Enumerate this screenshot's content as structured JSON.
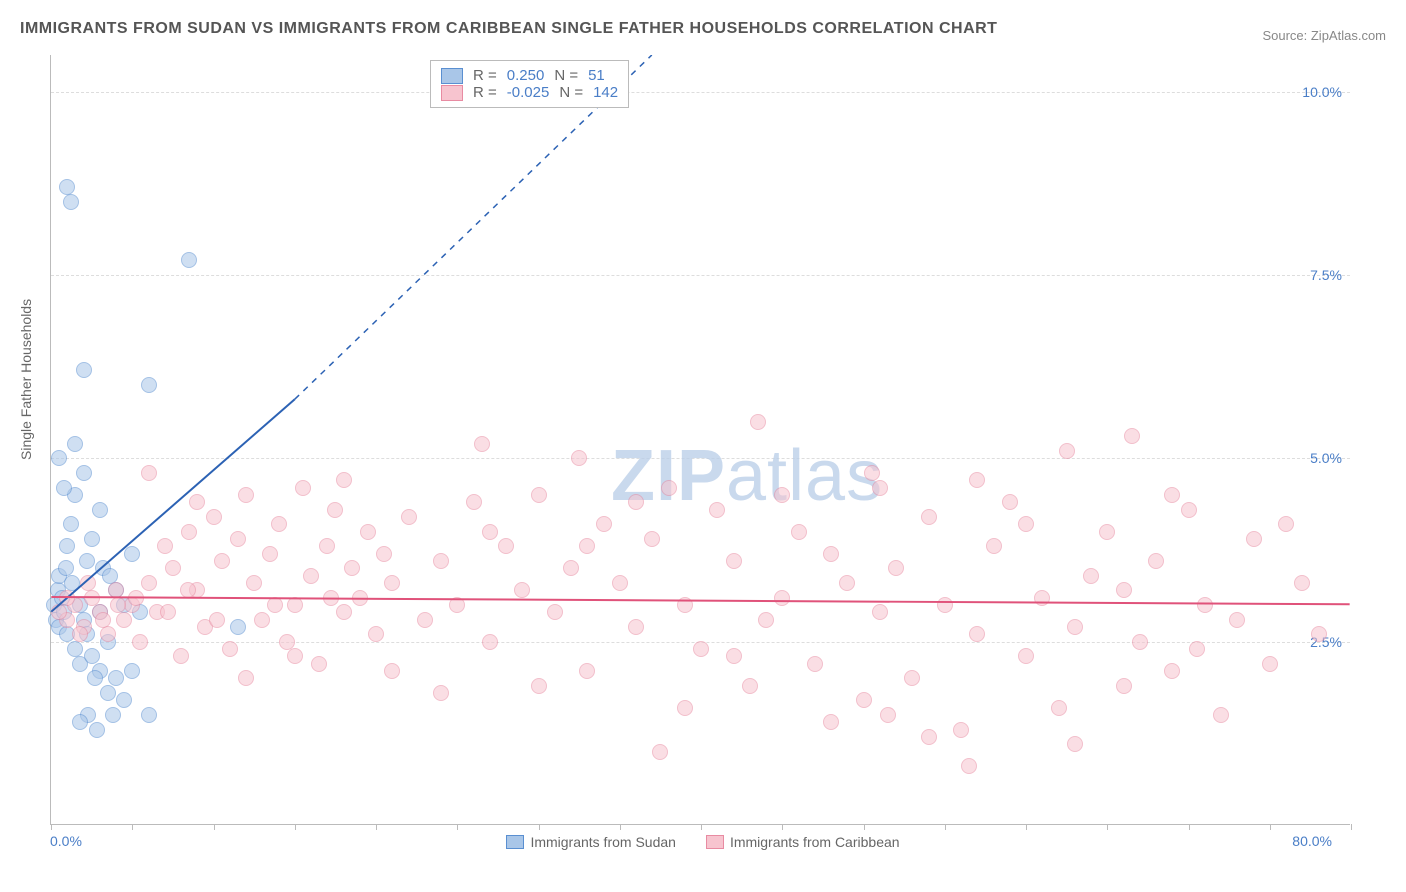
{
  "title": "IMMIGRANTS FROM SUDAN VS IMMIGRANTS FROM CARIBBEAN SINGLE FATHER HOUSEHOLDS CORRELATION CHART",
  "source": "Source: ZipAtlas.com",
  "ylabel": "Single Father Households",
  "watermark_a": "ZIP",
  "watermark_b": "atlas",
  "chart": {
    "type": "scatter",
    "background_color": "#ffffff",
    "grid_color": "#dddddd",
    "axis_color": "#bbbbbb",
    "label_color": "#666666",
    "title_color": "#555555",
    "tick_color": "#4a7ec7",
    "title_fontsize": 16,
    "label_fontsize": 14,
    "tick_fontsize": 14,
    "xlim": [
      0,
      80
    ],
    "ylim": [
      0,
      10.5
    ],
    "xticks_minor": [
      0,
      5,
      10,
      15,
      20,
      25,
      30,
      35,
      40,
      45,
      50,
      55,
      60,
      65,
      70,
      75,
      80
    ],
    "xtick_labels": {
      "min": "0.0%",
      "max": "80.0%"
    },
    "yticks": [
      2.5,
      5.0,
      7.5,
      10.0
    ],
    "ytick_labels": [
      "2.5%",
      "5.0%",
      "7.5%",
      "10.0%"
    ],
    "marker_size": 16,
    "marker_opacity": 0.55,
    "series": [
      {
        "name": "Immigrants from Sudan",
        "fill_color": "#a9c6e8",
        "stroke_color": "#5a8fd1",
        "line_color": "#2c62b4",
        "line_width": 2,
        "reg_solid": {
          "x1": 0,
          "y1": 2.9,
          "x2": 15,
          "y2": 5.8
        },
        "reg_dash": {
          "x1": 15,
          "y1": 5.8,
          "x2": 37,
          "y2": 10.5
        },
        "points": [
          [
            0.2,
            3.0
          ],
          [
            0.3,
            2.8
          ],
          [
            0.4,
            3.2
          ],
          [
            0.5,
            2.7
          ],
          [
            0.5,
            3.4
          ],
          [
            0.7,
            3.1
          ],
          [
            0.8,
            2.9
          ],
          [
            0.9,
            3.5
          ],
          [
            1.0,
            2.6
          ],
          [
            1.0,
            3.8
          ],
          [
            1.2,
            4.1
          ],
          [
            1.3,
            3.3
          ],
          [
            1.5,
            2.4
          ],
          [
            1.5,
            4.5
          ],
          [
            1.8,
            2.2
          ],
          [
            1.8,
            3.0
          ],
          [
            2.0,
            4.8
          ],
          [
            2.0,
            2.8
          ],
          [
            2.2,
            3.6
          ],
          [
            2.3,
            1.5
          ],
          [
            2.5,
            2.3
          ],
          [
            2.5,
            3.9
          ],
          [
            2.8,
            1.3
          ],
          [
            3.0,
            2.1
          ],
          [
            3.0,
            4.3
          ],
          [
            3.2,
            3.5
          ],
          [
            3.5,
            2.5
          ],
          [
            3.5,
            1.8
          ],
          [
            3.8,
            1.5
          ],
          [
            4.0,
            2.0
          ],
          [
            4.0,
            3.2
          ],
          [
            4.5,
            1.7
          ],
          [
            1.0,
            8.7
          ],
          [
            1.2,
            8.5
          ],
          [
            2.0,
            6.2
          ],
          [
            6.0,
            6.0
          ],
          [
            8.5,
            7.7
          ],
          [
            5.0,
            3.7
          ],
          [
            5.0,
            2.1
          ],
          [
            5.5,
            2.9
          ],
          [
            6.0,
            1.5
          ],
          [
            0.5,
            5.0
          ],
          [
            0.8,
            4.6
          ],
          [
            1.5,
            5.2
          ],
          [
            4.5,
            3.0
          ],
          [
            3.0,
            2.9
          ],
          [
            2.7,
            2.0
          ],
          [
            1.8,
            1.4
          ],
          [
            2.2,
            2.6
          ],
          [
            11.5,
            2.7
          ],
          [
            3.6,
            3.4
          ]
        ]
      },
      {
        "name": "Immigrants from Caribbean",
        "fill_color": "#f7c4cf",
        "stroke_color": "#e88ba2",
        "line_color": "#e0527a",
        "line_width": 2,
        "reg_solid": {
          "x1": 0,
          "y1": 3.1,
          "x2": 80,
          "y2": 3.0
        },
        "reg_dash": null,
        "points": [
          [
            1.0,
            2.8
          ],
          [
            1.5,
            3.0
          ],
          [
            2.0,
            2.7
          ],
          [
            2.5,
            3.1
          ],
          [
            3.0,
            2.9
          ],
          [
            3.5,
            2.6
          ],
          [
            4.0,
            3.2
          ],
          [
            4.5,
            2.8
          ],
          [
            5.0,
            3.0
          ],
          [
            5.5,
            2.5
          ],
          [
            6.0,
            3.3
          ],
          [
            6.5,
            2.9
          ],
          [
            7.0,
            3.8
          ],
          [
            7.5,
            3.5
          ],
          [
            8.0,
            2.3
          ],
          [
            8.5,
            4.0
          ],
          [
            9.0,
            3.2
          ],
          [
            9.5,
            2.7
          ],
          [
            10.0,
            4.2
          ],
          [
            10.5,
            3.6
          ],
          [
            11.0,
            2.4
          ],
          [
            11.5,
            3.9
          ],
          [
            12.0,
            4.5
          ],
          [
            12.5,
            3.3
          ],
          [
            13.0,
            2.8
          ],
          [
            13.5,
            3.7
          ],
          [
            14.0,
            4.1
          ],
          [
            14.5,
            2.5
          ],
          [
            15.0,
            3.0
          ],
          [
            15.5,
            4.6
          ],
          [
            16.0,
            3.4
          ],
          [
            16.5,
            2.2
          ],
          [
            17.0,
            3.8
          ],
          [
            17.5,
            4.3
          ],
          [
            18.0,
            2.9
          ],
          [
            18.5,
            3.5
          ],
          [
            19.0,
            3.1
          ],
          [
            19.5,
            4.0
          ],
          [
            20.0,
            2.6
          ],
          [
            20.5,
            3.7
          ],
          [
            21.0,
            3.3
          ],
          [
            22.0,
            4.2
          ],
          [
            23.0,
            2.8
          ],
          [
            24.0,
            3.6
          ],
          [
            25.0,
            3.0
          ],
          [
            26.0,
            4.4
          ],
          [
            26.5,
            5.2
          ],
          [
            27.0,
            2.5
          ],
          [
            28.0,
            3.8
          ],
          [
            29.0,
            3.2
          ],
          [
            30.0,
            4.5
          ],
          [
            31.0,
            2.9
          ],
          [
            32.0,
            3.5
          ],
          [
            32.5,
            5.0
          ],
          [
            33.0,
            2.1
          ],
          [
            34.0,
            4.1
          ],
          [
            35.0,
            3.3
          ],
          [
            36.0,
            2.7
          ],
          [
            37.0,
            3.9
          ],
          [
            37.5,
            1.0
          ],
          [
            38.0,
            4.6
          ],
          [
            39.0,
            3.0
          ],
          [
            40.0,
            2.4
          ],
          [
            41.0,
            4.3
          ],
          [
            42.0,
            3.6
          ],
          [
            43.0,
            1.9
          ],
          [
            43.5,
            5.5
          ],
          [
            44.0,
            2.8
          ],
          [
            45.0,
            3.1
          ],
          [
            46.0,
            4.0
          ],
          [
            47.0,
            2.2
          ],
          [
            48.0,
            3.7
          ],
          [
            49.0,
            3.3
          ],
          [
            50.0,
            1.7
          ],
          [
            50.5,
            4.8
          ],
          [
            51.0,
            2.9
          ],
          [
            51.5,
            1.5
          ],
          [
            52.0,
            3.5
          ],
          [
            53.0,
            2.0
          ],
          [
            54.0,
            4.2
          ],
          [
            55.0,
            3.0
          ],
          [
            56.0,
            1.3
          ],
          [
            56.5,
            0.8
          ],
          [
            57.0,
            2.6
          ],
          [
            58.0,
            3.8
          ],
          [
            59.0,
            4.4
          ],
          [
            60.0,
            2.3
          ],
          [
            61.0,
            3.1
          ],
          [
            62.0,
            1.6
          ],
          [
            62.5,
            5.1
          ],
          [
            63.0,
            2.7
          ],
          [
            64.0,
            3.4
          ],
          [
            65.0,
            4.0
          ],
          [
            66.0,
            1.9
          ],
          [
            66.5,
            5.3
          ],
          [
            67.0,
            2.5
          ],
          [
            68.0,
            3.6
          ],
          [
            69.0,
            2.1
          ],
          [
            70.0,
            4.3
          ],
          [
            70.5,
            2.4
          ],
          [
            71.0,
            3.0
          ],
          [
            72.0,
            1.5
          ],
          [
            73.0,
            2.8
          ],
          [
            74.0,
            3.9
          ],
          [
            75.0,
            2.2
          ],
          [
            76.0,
            4.1
          ],
          [
            77.0,
            3.3
          ],
          [
            78.0,
            2.6
          ],
          [
            6.0,
            4.8
          ],
          [
            9.0,
            4.4
          ],
          [
            12.0,
            2.0
          ],
          [
            15.0,
            2.3
          ],
          [
            18.0,
            4.7
          ],
          [
            21.0,
            2.1
          ],
          [
            24.0,
            1.8
          ],
          [
            27.0,
            4.0
          ],
          [
            30.0,
            1.9
          ],
          [
            33.0,
            3.8
          ],
          [
            36.0,
            4.4
          ],
          [
            39.0,
            1.6
          ],
          [
            42.0,
            2.3
          ],
          [
            45.0,
            4.5
          ],
          [
            48.0,
            1.4
          ],
          [
            51.0,
            4.6
          ],
          [
            54.0,
            1.2
          ],
          [
            57.0,
            4.7
          ],
          [
            60.0,
            4.1
          ],
          [
            63.0,
            1.1
          ],
          [
            66.0,
            3.2
          ],
          [
            69.0,
            4.5
          ],
          [
            0.5,
            2.9
          ],
          [
            1.0,
            3.1
          ],
          [
            1.8,
            2.6
          ],
          [
            2.3,
            3.3
          ],
          [
            3.2,
            2.8
          ],
          [
            4.1,
            3.0
          ],
          [
            5.2,
            3.1
          ],
          [
            7.2,
            2.9
          ],
          [
            8.4,
            3.2
          ],
          [
            10.2,
            2.8
          ],
          [
            13.8,
            3.0
          ],
          [
            17.2,
            3.1
          ]
        ]
      }
    ]
  },
  "legend_top": {
    "rows": [
      {
        "swatch_fill": "#a9c6e8",
        "swatch_stroke": "#5a8fd1",
        "r_label": "R =",
        "r_val": "0.250",
        "n_label": "N =",
        "n_val": "51"
      },
      {
        "swatch_fill": "#f7c4cf",
        "swatch_stroke": "#e88ba2",
        "r_label": "R =",
        "r_val": "-0.025",
        "n_label": "N =",
        "n_val": "142"
      }
    ]
  },
  "legend_bottom": {
    "items": [
      {
        "label": "Immigrants from Sudan",
        "fill": "#a9c6e8",
        "stroke": "#5a8fd1"
      },
      {
        "label": "Immigrants from Caribbean",
        "fill": "#f7c4cf",
        "stroke": "#e88ba2"
      }
    ]
  }
}
